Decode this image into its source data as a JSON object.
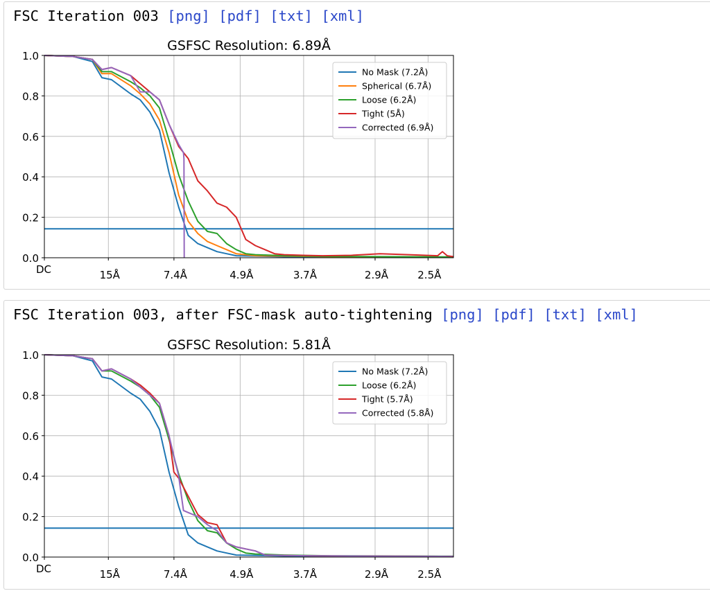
{
  "panels": [
    {
      "header_title": "FSC Iteration 003",
      "links": [
        "[png]",
        "[pdf]",
        "[txt]",
        "[xml]"
      ]
    },
    {
      "header_title": "FSC Iteration 003, after FSC-mask auto-tightening",
      "links": [
        "[png]",
        "[pdf]",
        "[txt]",
        "[xml]"
      ]
    }
  ],
  "chart_data": [
    {
      "type": "line",
      "title": "GSFSC Resolution: 6.89Å",
      "xlabel": "",
      "ylabel": "",
      "xlim": [
        0,
        0.4265
      ],
      "ylim": [
        0,
        1
      ],
      "x_tick_labels": [
        {
          "x": 0,
          "label": "DC"
        },
        {
          "x": 0.0667,
          "label": "15Å"
        },
        {
          "x": 0.1351,
          "label": "7.4Å"
        },
        {
          "x": 0.2041,
          "label": "4.9Å"
        },
        {
          "x": 0.2703,
          "label": "3.7Å"
        },
        {
          "x": 0.3448,
          "label": "2.9Å"
        },
        {
          "x": 0.4,
          "label": "2.5Å"
        }
      ],
      "y_ticks": [
        0.0,
        0.2,
        0.4,
        0.6,
        0.8,
        1.0
      ],
      "y_tick_labels": [
        "0.0",
        "0.2",
        "0.4",
        "0.6",
        "0.8",
        "1.0"
      ],
      "grid": true,
      "legend_position": "top-right",
      "threshold": {
        "y": 0.143,
        "color": "#1f77b4"
      },
      "series": [
        {
          "name": "No Mask (7.2Å)",
          "color": "#1f77b4",
          "points": [
            [
              0,
              1.0
            ],
            [
              0.03,
              0.995
            ],
            [
              0.05,
              0.97
            ],
            [
              0.06,
              0.89
            ],
            [
              0.07,
              0.88
            ],
            [
              0.09,
              0.81
            ],
            [
              0.1,
              0.78
            ],
            [
              0.11,
              0.72
            ],
            [
              0.12,
              0.63
            ],
            [
              0.13,
              0.42
            ],
            [
              0.14,
              0.25
            ],
            [
              0.15,
              0.11
            ],
            [
              0.16,
              0.07
            ],
            [
              0.17,
              0.05
            ],
            [
              0.18,
              0.03
            ],
            [
              0.19,
              0.02
            ],
            [
              0.2,
              0.01
            ],
            [
              0.25,
              0.005
            ],
            [
              0.3,
              0.003
            ],
            [
              0.4265,
              0.002
            ]
          ]
        },
        {
          "name": "Spherical (6.7Å)",
          "color": "#ff7f0e",
          "points": [
            [
              0,
              1.0
            ],
            [
              0.03,
              0.995
            ],
            [
              0.05,
              0.98
            ],
            [
              0.06,
              0.91
            ],
            [
              0.07,
              0.91
            ],
            [
              0.09,
              0.85
            ],
            [
              0.1,
              0.81
            ],
            [
              0.11,
              0.76
            ],
            [
              0.12,
              0.68
            ],
            [
              0.13,
              0.52
            ],
            [
              0.14,
              0.31
            ],
            [
              0.15,
              0.18
            ],
            [
              0.16,
              0.12
            ],
            [
              0.17,
              0.08
            ],
            [
              0.18,
              0.06
            ],
            [
              0.19,
              0.04
            ],
            [
              0.2,
              0.02
            ],
            [
              0.22,
              0.01
            ],
            [
              0.3,
              0.005
            ],
            [
              0.4265,
              0.003
            ]
          ]
        },
        {
          "name": "Loose (6.2Å)",
          "color": "#2ca02c",
          "points": [
            [
              0,
              1.0
            ],
            [
              0.03,
              0.995
            ],
            [
              0.05,
              0.98
            ],
            [
              0.06,
              0.92
            ],
            [
              0.07,
              0.92
            ],
            [
              0.09,
              0.87
            ],
            [
              0.1,
              0.84
            ],
            [
              0.11,
              0.8
            ],
            [
              0.12,
              0.74
            ],
            [
              0.13,
              0.58
            ],
            [
              0.14,
              0.41
            ],
            [
              0.15,
              0.28
            ],
            [
              0.16,
              0.18
            ],
            [
              0.17,
              0.13
            ],
            [
              0.18,
              0.12
            ],
            [
              0.19,
              0.07
            ],
            [
              0.2,
              0.04
            ],
            [
              0.21,
              0.02
            ],
            [
              0.22,
              0.015
            ],
            [
              0.25,
              0.01
            ],
            [
              0.3,
              0.006
            ],
            [
              0.4265,
              0.004
            ]
          ]
        },
        {
          "name": "Tight (5Å)",
          "color": "#d62728",
          "points": [
            [
              0,
              1.0
            ],
            [
              0.03,
              0.995
            ],
            [
              0.05,
              0.98
            ],
            [
              0.06,
              0.93
            ],
            [
              0.07,
              0.94
            ],
            [
              0.09,
              0.9
            ],
            [
              0.1,
              0.86
            ],
            [
              0.11,
              0.82
            ],
            [
              0.12,
              0.78
            ],
            [
              0.13,
              0.66
            ],
            [
              0.14,
              0.55
            ],
            [
              0.15,
              0.49
            ],
            [
              0.16,
              0.38
            ],
            [
              0.17,
              0.33
            ],
            [
              0.18,
              0.27
            ],
            [
              0.19,
              0.25
            ],
            [
              0.2,
              0.2
            ],
            [
              0.21,
              0.09
            ],
            [
              0.22,
              0.06
            ],
            [
              0.23,
              0.04
            ],
            [
              0.24,
              0.02
            ],
            [
              0.25,
              0.015
            ],
            [
              0.27,
              0.012
            ],
            [
              0.29,
              0.01
            ],
            [
              0.32,
              0.012
            ],
            [
              0.35,
              0.02
            ],
            [
              0.38,
              0.015
            ],
            [
              0.41,
              0.01
            ],
            [
              0.415,
              0.03
            ],
            [
              0.42,
              0.01
            ],
            [
              0.4265,
              0.005
            ]
          ]
        },
        {
          "name": "Corrected (6.9Å)",
          "color": "#9467bd",
          "points": [
            [
              0,
              1.0
            ],
            [
              0.03,
              0.995
            ],
            [
              0.05,
              0.98
            ],
            [
              0.06,
              0.93
            ],
            [
              0.07,
              0.94
            ],
            [
              0.08,
              0.92
            ],
            [
              0.09,
              0.9
            ],
            [
              0.1,
              0.82
            ],
            [
              0.11,
              0.82
            ],
            [
              0.12,
              0.78
            ],
            [
              0.13,
              0.66
            ],
            [
              0.14,
              0.56
            ],
            [
              0.145,
              0.52
            ],
            [
              0.1455,
              0.49
            ],
            [
              0.1458,
              0.0
            ]
          ]
        }
      ]
    },
    {
      "type": "line",
      "title": "GSFSC Resolution: 5.81Å",
      "xlabel": "",
      "ylabel": "",
      "xlim": [
        0,
        0.4265
      ],
      "ylim": [
        0,
        1
      ],
      "x_tick_labels": [
        {
          "x": 0,
          "label": "DC"
        },
        {
          "x": 0.0667,
          "label": "15Å"
        },
        {
          "x": 0.1351,
          "label": "7.4Å"
        },
        {
          "x": 0.2041,
          "label": "4.9Å"
        },
        {
          "x": 0.2703,
          "label": "3.7Å"
        },
        {
          "x": 0.3448,
          "label": "2.9Å"
        },
        {
          "x": 0.4,
          "label": "2.5Å"
        }
      ],
      "y_ticks": [
        0.0,
        0.2,
        0.4,
        0.6,
        0.8,
        1.0
      ],
      "y_tick_labels": [
        "0.0",
        "0.2",
        "0.4",
        "0.6",
        "0.8",
        "1.0"
      ],
      "grid": true,
      "legend_position": "top-right",
      "threshold": {
        "y": 0.143,
        "color": "#1f77b4"
      },
      "series": [
        {
          "name": "No Mask (7.2Å)",
          "color": "#1f77b4",
          "points": [
            [
              0,
              1.0
            ],
            [
              0.03,
              0.995
            ],
            [
              0.05,
              0.97
            ],
            [
              0.06,
              0.89
            ],
            [
              0.07,
              0.88
            ],
            [
              0.09,
              0.81
            ],
            [
              0.1,
              0.78
            ],
            [
              0.11,
              0.72
            ],
            [
              0.12,
              0.63
            ],
            [
              0.13,
              0.42
            ],
            [
              0.14,
              0.25
            ],
            [
              0.15,
              0.11
            ],
            [
              0.16,
              0.07
            ],
            [
              0.17,
              0.05
            ],
            [
              0.18,
              0.03
            ],
            [
              0.19,
              0.02
            ],
            [
              0.2,
              0.01
            ],
            [
              0.25,
              0.005
            ],
            [
              0.3,
              0.003
            ],
            [
              0.4265,
              0.002
            ]
          ]
        },
        {
          "name": "Loose (6.2Å)",
          "color": "#2ca02c",
          "points": [
            [
              0,
              1.0
            ],
            [
              0.03,
              0.995
            ],
            [
              0.05,
              0.98
            ],
            [
              0.06,
              0.92
            ],
            [
              0.07,
              0.92
            ],
            [
              0.09,
              0.87
            ],
            [
              0.1,
              0.84
            ],
            [
              0.11,
              0.8
            ],
            [
              0.12,
              0.74
            ],
            [
              0.13,
              0.58
            ],
            [
              0.14,
              0.41
            ],
            [
              0.15,
              0.28
            ],
            [
              0.16,
              0.18
            ],
            [
              0.17,
              0.13
            ],
            [
              0.18,
              0.12
            ],
            [
              0.19,
              0.07
            ],
            [
              0.2,
              0.04
            ],
            [
              0.21,
              0.02
            ],
            [
              0.22,
              0.015
            ],
            [
              0.25,
              0.01
            ],
            [
              0.3,
              0.006
            ],
            [
              0.4265,
              0.004
            ]
          ]
        },
        {
          "name": "Tight (5.7Å)",
          "color": "#d62728",
          "points": [
            [
              0,
              1.0
            ],
            [
              0.03,
              0.995
            ],
            [
              0.05,
              0.98
            ],
            [
              0.06,
              0.92
            ],
            [
              0.07,
              0.93
            ],
            [
              0.09,
              0.88
            ],
            [
              0.1,
              0.85
            ],
            [
              0.11,
              0.81
            ],
            [
              0.12,
              0.76
            ],
            [
              0.13,
              0.6
            ],
            [
              0.135,
              0.42
            ],
            [
              0.14,
              0.39
            ],
            [
              0.15,
              0.3
            ],
            [
              0.16,
              0.21
            ],
            [
              0.17,
              0.17
            ],
            [
              0.18,
              0.16
            ],
            [
              0.19,
              0.07
            ],
            [
              0.2,
              0.05
            ],
            [
              0.21,
              0.04
            ],
            [
              0.22,
              0.03
            ],
            [
              0.23,
              0.01
            ],
            [
              0.25,
              0.008
            ],
            [
              0.28,
              0.006
            ],
            [
              0.32,
              0.005
            ],
            [
              0.35,
              0.004
            ],
            [
              0.4265,
              0.003
            ]
          ]
        },
        {
          "name": "Corrected (5.8Å)",
          "color": "#9467bd",
          "points": [
            [
              0,
              1.0
            ],
            [
              0.03,
              0.995
            ],
            [
              0.05,
              0.98
            ],
            [
              0.06,
              0.92
            ],
            [
              0.07,
              0.93
            ],
            [
              0.09,
              0.88
            ],
            [
              0.1,
              0.84
            ],
            [
              0.11,
              0.8
            ],
            [
              0.12,
              0.76
            ],
            [
              0.13,
              0.6
            ],
            [
              0.14,
              0.4
            ],
            [
              0.145,
              0.23
            ],
            [
              0.15,
              0.22
            ],
            [
              0.16,
              0.2
            ],
            [
              0.17,
              0.16
            ],
            [
              0.18,
              0.13
            ],
            [
              0.19,
              0.07
            ],
            [
              0.2,
              0.05
            ],
            [
              0.21,
              0.04
            ],
            [
              0.22,
              0.03
            ],
            [
              0.23,
              0.01
            ],
            [
              0.25,
              0.008
            ],
            [
              0.28,
              0.006
            ],
            [
              0.32,
              0.005
            ],
            [
              0.35,
              0.004
            ],
            [
              0.4265,
              0.003
            ]
          ]
        }
      ]
    }
  ]
}
